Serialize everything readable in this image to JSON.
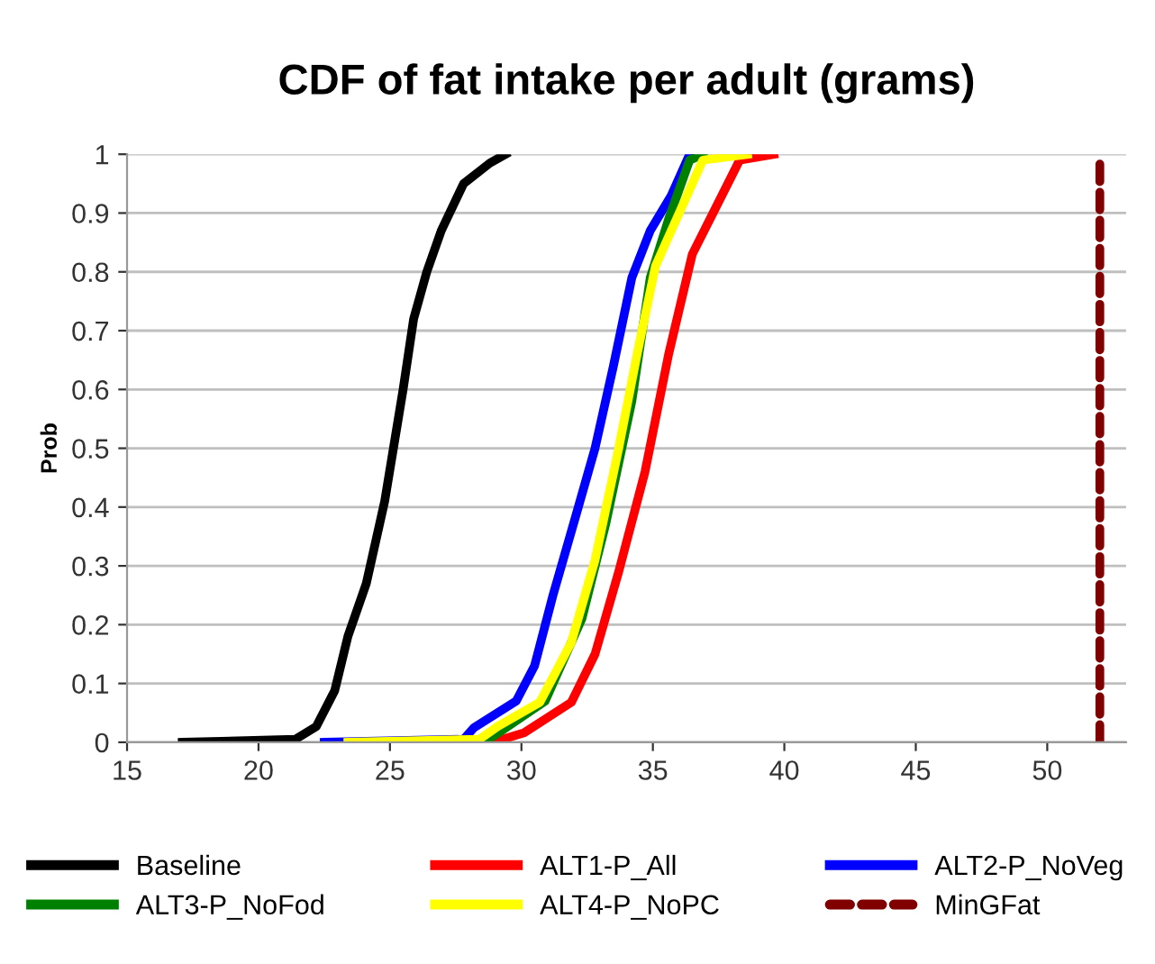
{
  "chart_data": {
    "type": "line",
    "title": "CDF of fat intake per adult (grams)",
    "ylabel": "Prob",
    "xlim": [
      15,
      53
    ],
    "xticks": [
      15,
      20,
      25,
      30,
      35,
      40,
      45,
      50
    ],
    "ylim": [
      0,
      1
    ],
    "yticks": [
      0,
      0.1,
      0.2,
      0.3,
      0.4,
      0.5,
      0.6,
      0.7,
      0.8,
      0.9,
      1
    ],
    "grid": "y",
    "legend": "bottom",
    "marker": "none",
    "line_style": "solid",
    "series": [
      {
        "name": "Baseline",
        "color": "#000000",
        "x": [
          17.1,
          21.4,
          22.2,
          22.9,
          23.4,
          24.1,
          24.8,
          25.5,
          25.9,
          26.4,
          26.95,
          27.8,
          28.8,
          29.4
        ],
        "values": [
          0,
          0.005,
          0.027,
          0.088,
          0.18,
          0.27,
          0.41,
          0.6,
          0.72,
          0.8,
          0.87,
          0.95,
          0.985,
          1
        ]
      },
      {
        "name": "ALT1-P_All",
        "color": "#ff0000",
        "x": [
          28.9,
          30.1,
          31.9,
          32.8,
          33.7,
          34.7,
          35.6,
          36.5,
          37.4,
          38.3,
          39.6
        ],
        "values": [
          0,
          0.016,
          0.068,
          0.15,
          0.29,
          0.46,
          0.66,
          0.83,
          0.91,
          0.99,
          1
        ]
      },
      {
        "name": "ALT2-P_NoVeg",
        "color": "#0000ff",
        "x": [
          22.5,
          27.8,
          28.2,
          29.8,
          30.5,
          31.2,
          32.1,
          32.8,
          33.5,
          34.2,
          34.9,
          35.7,
          36.4
        ],
        "values": [
          0,
          0.005,
          0.025,
          0.07,
          0.13,
          0.25,
          0.39,
          0.5,
          0.64,
          0.79,
          0.87,
          0.93,
          1
        ]
      },
      {
        "name": "ALT3-P_NoFod",
        "color": "#008000",
        "x": [
          28.6,
          30.9,
          32.3,
          33.2,
          34.2,
          34.9,
          35.6,
          36.4,
          36.9
        ],
        "values": [
          0,
          0.07,
          0.21,
          0.37,
          0.58,
          0.79,
          0.89,
          0.99,
          1
        ]
      },
      {
        "name": "ALT4-P_NoPC",
        "color": "#ffff00",
        "x": [
          23.4,
          28.4,
          29.1,
          30.7,
          31.9,
          32.8,
          33.7,
          34.4,
          35.1,
          36.0,
          36.9,
          38.6
        ],
        "values": [
          0,
          0.005,
          0.027,
          0.068,
          0.17,
          0.31,
          0.5,
          0.66,
          0.81,
          0.9,
          0.99,
          1
        ]
      }
    ],
    "ref_lines": [
      {
        "axis": "x",
        "value": 52,
        "label": "MinGFat",
        "color": "#800000",
        "line_style": "dashed"
      }
    ]
  }
}
